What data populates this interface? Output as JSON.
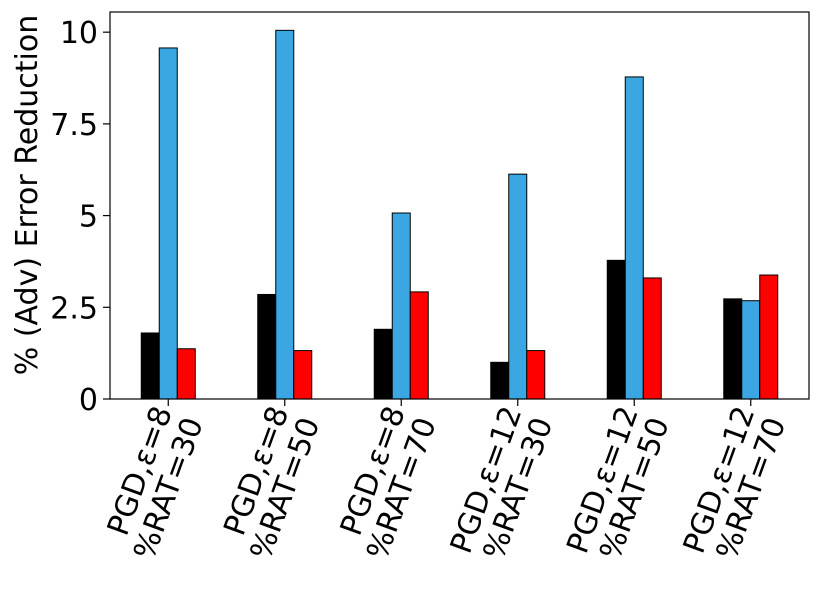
{
  "chart_data": {
    "type": "bar",
    "title": "",
    "xlabel": "",
    "ylabel": "% (Adv) Error Reduction",
    "ylim": [
      0,
      10.55
    ],
    "yticks": [
      0,
      2.5,
      5,
      7.5,
      10
    ],
    "ytick_labels": [
      "0",
      "2.5",
      "5",
      "7.5",
      "10"
    ],
    "grid": false,
    "legend": "none",
    "categories": [
      [
        "PGD,ε=8",
        "%RAT=30"
      ],
      [
        "PGD,ε=8",
        "%RAT=50"
      ],
      [
        "PGD,ε=8",
        "%RAT=70"
      ],
      [
        "PGD,ε=12",
        "%RAT=30"
      ],
      [
        "PGD,ε=12",
        "%RAT=50"
      ],
      [
        "PGD,ε=12",
        "%RAT=70"
      ]
    ],
    "series": [
      {
        "color": "#000000",
        "values": [
          1.8,
          2.85,
          1.9,
          1.0,
          3.78,
          2.73
        ]
      },
      {
        "color": "#3aa7e3",
        "values": [
          9.57,
          10.05,
          5.07,
          6.13,
          8.78,
          2.68
        ]
      },
      {
        "color": "#ff0000",
        "values": [
          1.37,
          1.32,
          2.92,
          1.32,
          3.3,
          3.38
        ]
      }
    ]
  }
}
